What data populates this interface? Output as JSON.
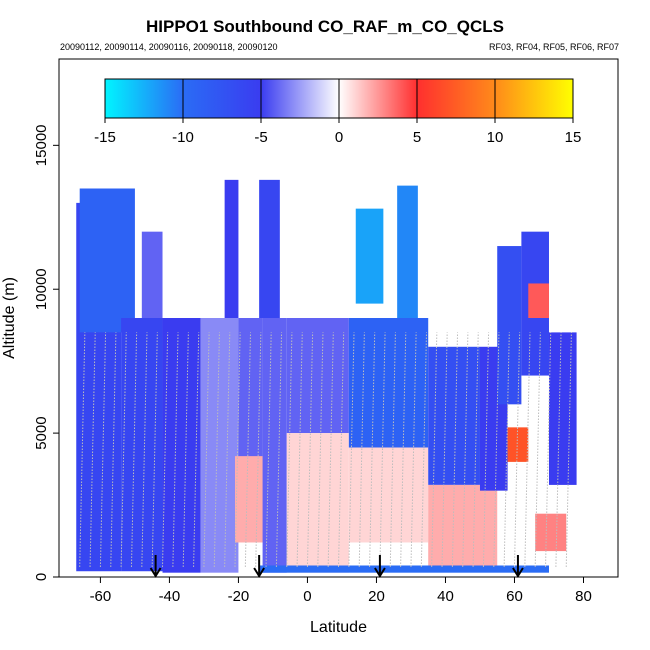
{
  "title": "HIPPO1 Southbound CO_RAF_m_CO_QCLS",
  "subtitle_left": "20090112, 20090114, 20090116, 20090118, 20090120",
  "subtitle_right": "RF03, RF04, RF05, RF06, RF07",
  "chart_data": {
    "type": "heatmap",
    "title": "HIPPO1 Southbound CO_RAF_m_CO_QCLS",
    "xlabel": "Latitude",
    "ylabel": "Altitude (m)",
    "xlim": [
      -72,
      90
    ],
    "ylim": [
      0,
      18000
    ],
    "x_ticks": [
      -60,
      -40,
      -20,
      0,
      20,
      40,
      60,
      80
    ],
    "y_ticks": [
      0,
      5000,
      10000,
      15000
    ],
    "colorbar": {
      "range": [
        -15,
        15
      ],
      "ticks": [
        -15,
        -10,
        -5,
        0,
        5,
        10,
        15
      ],
      "stops": [
        {
          "v": -15,
          "color": "#00f5ff"
        },
        {
          "v": -10,
          "color": "#2a6cf5"
        },
        {
          "v": -5,
          "color": "#3a3cf0"
        },
        {
          "v": 0,
          "color": "#ffffff"
        },
        {
          "v": 5,
          "color": "#ff2f2f"
        },
        {
          "v": 10,
          "color": "#ff8a1a"
        },
        {
          "v": 15,
          "color": "#ffff00"
        }
      ]
    },
    "arrows_latitude": [
      -44,
      -14,
      21,
      61
    ],
    "data_extent": {
      "x": [
        -67,
        78
      ],
      "y": [
        150,
        14000
      ]
    },
    "blocks": [
      {
        "lat": [
          -67,
          -54
        ],
        "alt": [
          200,
          13000
        ],
        "value": -6
      },
      {
        "lat": [
          -66,
          -50
        ],
        "alt": [
          8500,
          13500
        ],
        "value": -9
      },
      {
        "lat": [
          -54,
          -42
        ],
        "alt": [
          200,
          9000
        ],
        "value": -6
      },
      {
        "lat": [
          -48,
          -42
        ],
        "alt": [
          9000,
          12000
        ],
        "value": -4
      },
      {
        "lat": [
          -42,
          -31
        ],
        "alt": [
          150,
          9000
        ],
        "value": -5
      },
      {
        "lat": [
          -31,
          -20
        ],
        "alt": [
          150,
          9000
        ],
        "value": -3
      },
      {
        "lat": [
          -24,
          -20
        ],
        "alt": [
          9000,
          13800
        ],
        "value": -5
      },
      {
        "lat": [
          -20,
          -13
        ],
        "alt": [
          3600,
          9000
        ],
        "value": -4
      },
      {
        "lat": [
          -21,
          -12
        ],
        "alt": [
          1200,
          4200
        ],
        "value": 2
      },
      {
        "lat": [
          -13,
          -6
        ],
        "alt": [
          150,
          9000
        ],
        "value": -4
      },
      {
        "lat": [
          -14,
          -8
        ],
        "alt": [
          9000,
          13800
        ],
        "value": -6
      },
      {
        "lat": [
          -6,
          12
        ],
        "alt": [
          5000,
          9000
        ],
        "value": -4
      },
      {
        "lat": [
          -6,
          12
        ],
        "alt": [
          150,
          5000
        ],
        "value": 1
      },
      {
        "lat": [
          12,
          35
        ],
        "alt": [
          4500,
          9000
        ],
        "value": -9
      },
      {
        "lat": [
          14,
          22
        ],
        "alt": [
          9500,
          12800
        ],
        "value": -12
      },
      {
        "lat": [
          26,
          32
        ],
        "alt": [
          9000,
          13600
        ],
        "value": -11
      },
      {
        "lat": [
          12,
          35
        ],
        "alt": [
          1200,
          4500
        ],
        "value": 1
      },
      {
        "lat": [
          35,
          50
        ],
        "alt": [
          3200,
          8000
        ],
        "value": -7
      },
      {
        "lat": [
          35,
          55
        ],
        "alt": [
          300,
          3200
        ],
        "value": 2
      },
      {
        "lat": [
          50,
          58
        ],
        "alt": [
          3000,
          8000
        ],
        "value": -5
      },
      {
        "lat": [
          55,
          62
        ],
        "alt": [
          6000,
          11500
        ],
        "value": -7
      },
      {
        "lat": [
          58,
          64
        ],
        "alt": [
          4000,
          5200
        ],
        "value": 7
      },
      {
        "lat": [
          62,
          70
        ],
        "alt": [
          7000,
          12000
        ],
        "value": -6
      },
      {
        "lat": [
          64,
          70
        ],
        "alt": [
          9000,
          10200
        ],
        "value": 4
      },
      {
        "lat": [
          70,
          78
        ],
        "alt": [
          3200,
          8500
        ],
        "value": -5
      },
      {
        "lat": [
          66,
          75
        ],
        "alt": [
          900,
          2200
        ],
        "value": 3
      },
      {
        "lat": [
          -14,
          70
        ],
        "alt": [
          150,
          400
        ],
        "value": -10
      }
    ]
  }
}
